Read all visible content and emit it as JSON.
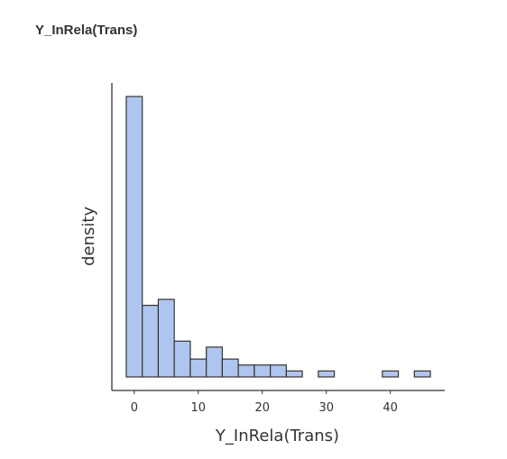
{
  "panel": {
    "title": "Y_InRela(Trans)"
  },
  "chart_data": {
    "type": "bar",
    "subtype": "histogram",
    "title": "Y_InRela(Trans)",
    "xlabel": "Y_InRela(Trans)",
    "ylabel": "density",
    "xlim": [
      -3.5,
      48.5
    ],
    "x_ticks": [
      0,
      10,
      20,
      30,
      40
    ],
    "y_ticks_shown": false,
    "grid": false,
    "legend": "none",
    "colors": {
      "fill": "#aec6ef",
      "stroke": "#333333",
      "axis": "#333333"
    },
    "bins": [
      {
        "x0": -1.25,
        "x1": 1.25,
        "value": 47
      },
      {
        "x0": 1.25,
        "x1": 3.75,
        "value": 12
      },
      {
        "x0": 3.75,
        "x1": 6.25,
        "value": 13
      },
      {
        "x0": 6.25,
        "x1": 8.75,
        "value": 6
      },
      {
        "x0": 8.75,
        "x1": 11.25,
        "value": 3
      },
      {
        "x0": 11.25,
        "x1": 13.75,
        "value": 5
      },
      {
        "x0": 13.75,
        "x1": 16.25,
        "value": 3
      },
      {
        "x0": 16.25,
        "x1": 18.75,
        "value": 2
      },
      {
        "x0": 18.75,
        "x1": 21.25,
        "value": 2
      },
      {
        "x0": 21.25,
        "x1": 23.75,
        "value": 2
      },
      {
        "x0": 23.75,
        "x1": 26.25,
        "value": 1
      },
      {
        "x0": 26.25,
        "x1": 28.75,
        "value": 0
      },
      {
        "x0": 28.75,
        "x1": 31.25,
        "value": 1
      },
      {
        "x0": 31.25,
        "x1": 33.75,
        "value": 0
      },
      {
        "x0": 33.75,
        "x1": 36.25,
        "value": 0
      },
      {
        "x0": 36.25,
        "x1": 38.75,
        "value": 0
      },
      {
        "x0": 38.75,
        "x1": 41.25,
        "value": 1
      },
      {
        "x0": 41.25,
        "x1": 43.75,
        "value": 0
      },
      {
        "x0": 43.75,
        "x1": 46.25,
        "value": 1
      }
    ],
    "ylim": [
      0,
      49.5
    ]
  }
}
